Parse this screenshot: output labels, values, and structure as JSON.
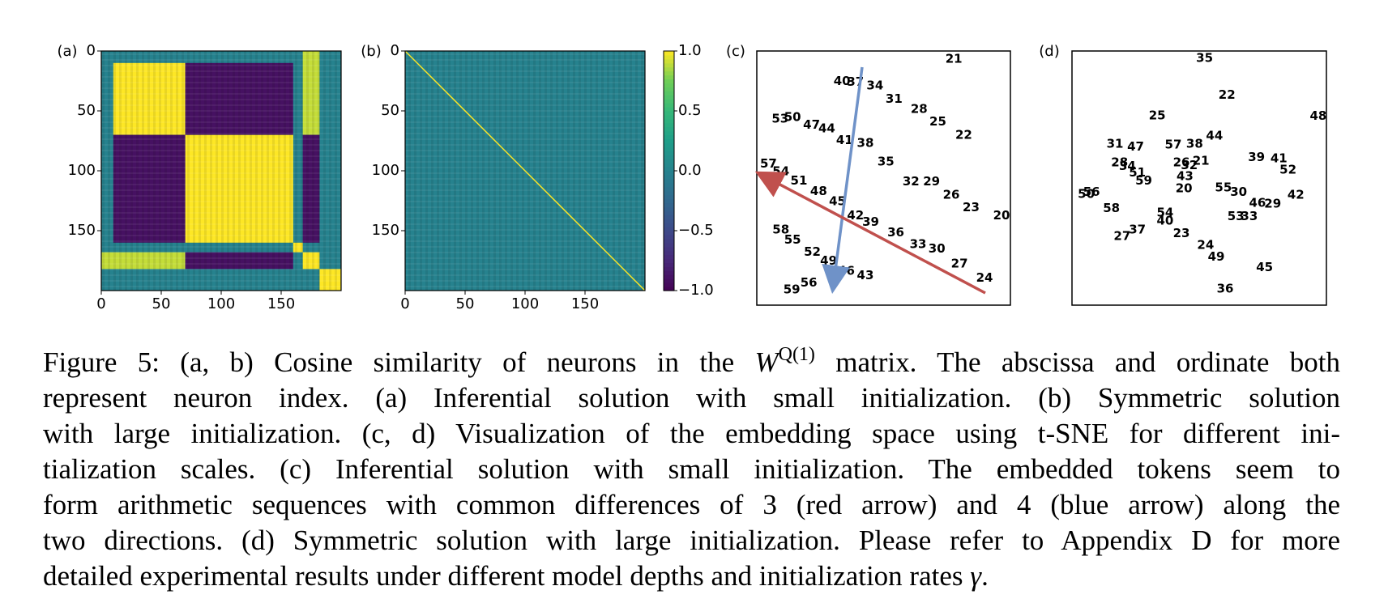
{
  "chart_data": [
    {
      "type": "heatmap",
      "panel_label": "(a)",
      "xlim": [
        0,
        200
      ],
      "ylim": [
        200,
        0
      ],
      "xticks": [
        0,
        50,
        100,
        150
      ],
      "yticks": [
        0,
        50,
        100,
        150
      ],
      "blocks": [
        {
          "rows": [
            0,
            200
          ],
          "cols": [
            0,
            200
          ],
          "value": 0
        },
        {
          "rows": [
            10,
            70
          ],
          "cols": [
            10,
            70
          ],
          "value": 1
        },
        {
          "rows": [
            70,
            160
          ],
          "cols": [
            70,
            160
          ],
          "value": 1
        },
        {
          "rows": [
            10,
            70
          ],
          "cols": [
            70,
            160
          ],
          "value": -0.9
        },
        {
          "rows": [
            70,
            160
          ],
          "cols": [
            10,
            70
          ],
          "value": -0.9
        },
        {
          "rows": [
            168,
            182
          ],
          "cols": [
            0,
            70
          ],
          "value": 0.9
        },
        {
          "rows": [
            0,
            70
          ],
          "cols": [
            168,
            182
          ],
          "value": 0.9
        },
        {
          "rows": [
            168,
            182
          ],
          "cols": [
            70,
            160
          ],
          "value": -0.9
        },
        {
          "rows": [
            70,
            160
          ],
          "cols": [
            168,
            182
          ],
          "value": -0.9
        },
        {
          "rows": [
            168,
            182
          ],
          "cols": [
            168,
            182
          ],
          "value": 1
        },
        {
          "rows": [
            160,
            168
          ],
          "cols": [
            160,
            168
          ],
          "value": 1
        },
        {
          "rows": [
            182,
            200
          ],
          "cols": [
            182,
            200
          ],
          "value": 1
        }
      ]
    },
    {
      "type": "heatmap",
      "panel_label": "(b)",
      "xlim": [
        0,
        200
      ],
      "ylim": [
        200,
        0
      ],
      "xticks": [
        0,
        50,
        100,
        150
      ],
      "yticks": [
        0,
        50,
        100,
        150
      ],
      "blocks": [
        {
          "rows": [
            0,
            200
          ],
          "cols": [
            0,
            200
          ],
          "value": 0
        }
      ],
      "diagonal": 1,
      "colorbar": {
        "lim": [
          -1,
          1
        ],
        "ticks": [
          {
            "value": 1,
            "label": "1.0"
          },
          {
            "value": 0.5,
            "label": "0.5"
          },
          {
            "value": 0,
            "label": "0.0"
          },
          {
            "value": -0.5,
            "label": "−0.5"
          },
          {
            "value": -1,
            "label": "−1.0"
          }
        ]
      }
    },
    {
      "type": "scatter",
      "panel_label": "(c)",
      "xlim": [
        0,
        100
      ],
      "ylim": [
        0,
        100
      ],
      "colormap": "viridis",
      "labels": [
        21,
        40,
        37,
        34,
        31,
        28,
        25,
        22,
        53,
        50,
        47,
        44,
        41,
        38,
        35,
        57,
        54,
        32,
        29,
        51,
        48,
        26,
        45,
        23,
        20,
        42,
        39,
        36,
        58,
        55,
        33,
        30,
        52,
        49,
        27,
        46,
        43,
        24,
        59,
        56
      ],
      "x": [
        77.7,
        33.6,
        38.9,
        46.6,
        54.1,
        64.0,
        71.4,
        81.6,
        9.2,
        14.1,
        21.6,
        27.6,
        34.6,
        42.8,
        50.9,
        4.6,
        9.5,
        60.8,
        68.9,
        16.6,
        24.4,
        76.7,
        31.8,
        84.5,
        96.5,
        38.9,
        44.9,
        54.8,
        9.5,
        14.1,
        63.6,
        71.0,
        21.9,
        28.3,
        79.9,
        35.3,
        42.8,
        89.8,
        13.8,
        20.5
      ],
      "y": [
        96.8,
        88.0,
        87.7,
        86.3,
        81.0,
        77.1,
        72.2,
        66.9,
        73.2,
        73.9,
        70.8,
        69.4,
        64.8,
        63.7,
        56.3,
        55.6,
        52.5,
        48.6,
        48.6,
        48.9,
        44.7,
        43.3,
        40.8,
        38.4,
        35.2,
        35.2,
        32.7,
        28.5,
        29.6,
        25.7,
        23.9,
        22.2,
        20.8,
        17.3,
        16.2,
        13.4,
        11.6,
        10.6,
        6.0,
        8.8
      ]
    },
    {
      "type": "scatter",
      "panel_label": "(d)",
      "xlim": [
        0,
        100
      ],
      "ylim": [
        0,
        100
      ],
      "colormap": "viridis",
      "labels": [
        35,
        22,
        25,
        48,
        44,
        31,
        47,
        57,
        38,
        39,
        41,
        52,
        28,
        34,
        26,
        32,
        21,
        51,
        43,
        59,
        20,
        55,
        30,
        46,
        29,
        42,
        50,
        56,
        58,
        53,
        33,
        54,
        40,
        27,
        37,
        23,
        24,
        49,
        45,
        36
      ],
      "x": [
        52.1,
        60.9,
        33.5,
        96.8,
        56.0,
        16.9,
        25.0,
        39.8,
        48.2,
        72.5,
        81.3,
        84.9,
        18.7,
        21.8,
        43.0,
        46.1,
        50.7,
        25.7,
        44.4,
        28.2,
        44.0,
        59.5,
        65.5,
        72.9,
        78.9,
        88.0,
        5.6,
        7.7,
        15.5,
        64.4,
        69.7,
        36.6,
        36.6,
        19.7,
        25.7,
        43.0,
        52.5,
        56.7,
        75.7,
        60.2
      ],
      "y": [
        97.2,
        82.7,
        74.6,
        74.3,
        66.5,
        63.4,
        62.3,
        63.0,
        63.4,
        58.1,
        57.7,
        53.2,
        56.0,
        54.6,
        56.0,
        54.9,
        56.7,
        52.1,
        50.7,
        48.9,
        45.8,
        46.1,
        44.4,
        40.1,
        39.8,
        43.3,
        43.7,
        44.4,
        38.0,
        34.9,
        34.9,
        36.3,
        33.1,
        27.1,
        29.6,
        28.2,
        23.6,
        19.0,
        14.8,
        6.3
      ]
    }
  ],
  "caption": {
    "first": {
      "text": "Figure 5: (a, b) Cosine similarity of neurons in the ",
      "math": "W",
      "sup": "Q(1)",
      "rest": " matrix. The abscissa and ordinate both"
    },
    "lines": [
      "represent neuron index. (a) Inferential solution with small initialization. (b) Symmetric solution",
      "with large initialization. (c, d) Visualization of the embedding space using t-SNE for different ini-",
      "tialization scales. (c) Inferential solution with small initialization. The embedded tokens seem to",
      "form arithmetic sequences with common differences of 3 (red arrow) and 4 (blue arrow) along the",
      "two directions. (d) Symmetric solution with large initialization. Please refer to Appendix D for more"
    ],
    "last": {
      "text": "detailed experimental results under different model depths and initialization rates ",
      "math": "γ",
      "rest": "."
    }
  }
}
